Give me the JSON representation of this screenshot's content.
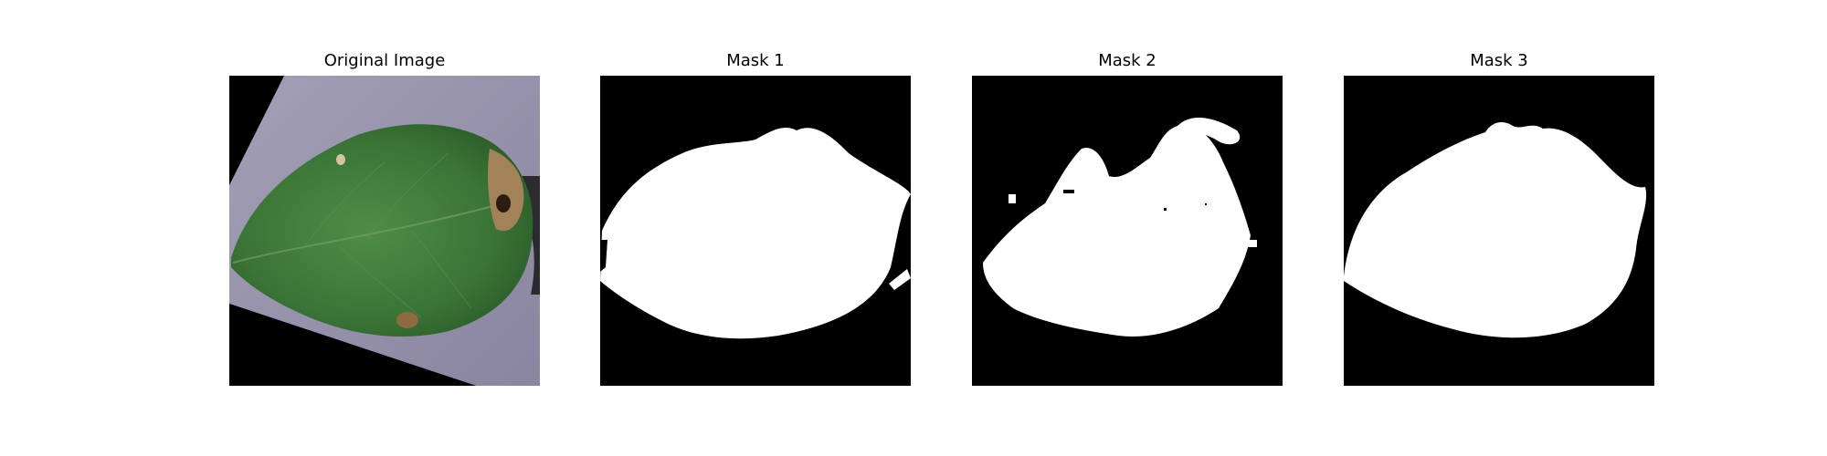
{
  "figure": {
    "panels": [
      {
        "title": "Original Image",
        "kind": "photo"
      },
      {
        "title": "Mask 1",
        "kind": "mask"
      },
      {
        "title": "Mask 2",
        "kind": "mask"
      },
      {
        "title": "Mask 3",
        "kind": "mask"
      }
    ]
  },
  "colors": {
    "background": "#ffffff",
    "mask_foreground": "#ffffff",
    "mask_background": "#000000",
    "leaf_green": "#3f7a3c",
    "surface_lavender": "#9590a8",
    "lesion_brown": "#9a7a4e"
  }
}
